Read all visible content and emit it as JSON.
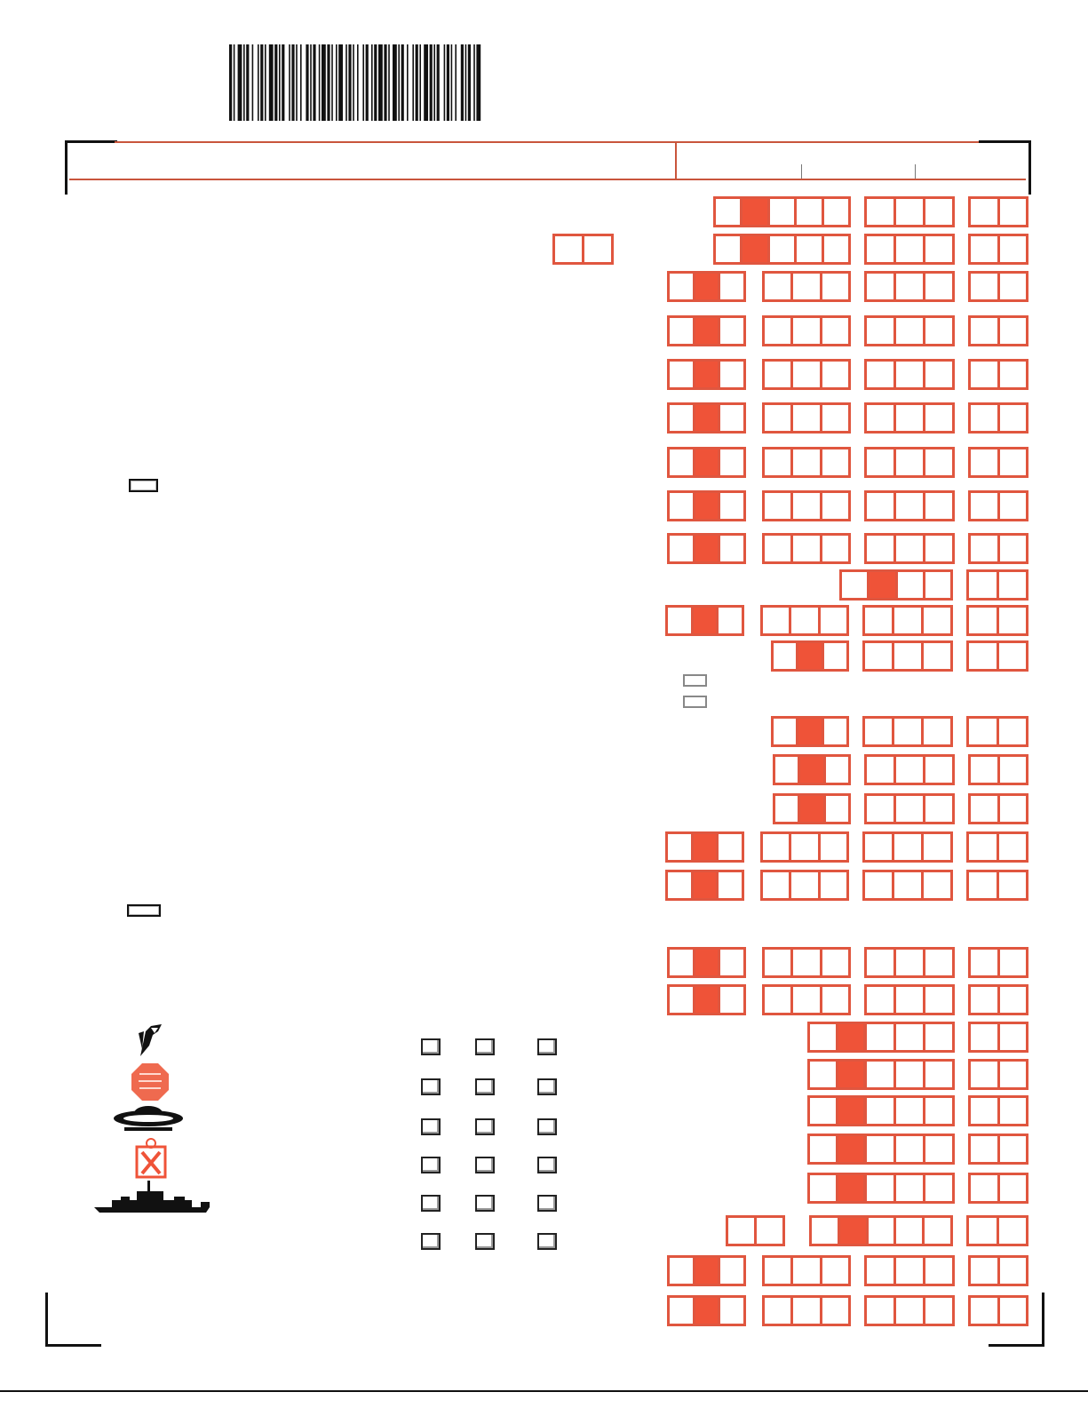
{
  "colors": {
    "accent": "#e0563f",
    "shade": "#ef5338",
    "ink": "#111111"
  },
  "barcode": {
    "icon": "barcode-icon"
  },
  "form_rows": [
    [
      {
        "cells": 5,
        "shaded": [
          1
        ]
      },
      {
        "cells": 3,
        "shaded": []
      },
      {
        "cells": 2,
        "shaded": []
      }
    ],
    [
      {
        "cells": 2,
        "shaded": []
      },
      {
        "cells": 5,
        "shaded": [
          1
        ]
      },
      {
        "cells": 3,
        "shaded": []
      },
      {
        "cells": 2,
        "shaded": []
      }
    ],
    [
      {
        "cells": 3,
        "shaded": [
          1
        ]
      },
      {
        "cells": 3,
        "shaded": []
      },
      {
        "cells": 3,
        "shaded": []
      },
      {
        "cells": 2,
        "shaded": []
      }
    ]
  ],
  "checkbox_grid": {
    "rows": 6,
    "columns": 3
  },
  "icons": [
    "pen-hand-icon",
    "stop-child-abuse-icon",
    "flying-saucer-icon",
    "aids-ribbon-icon",
    "battleship-icon"
  ]
}
